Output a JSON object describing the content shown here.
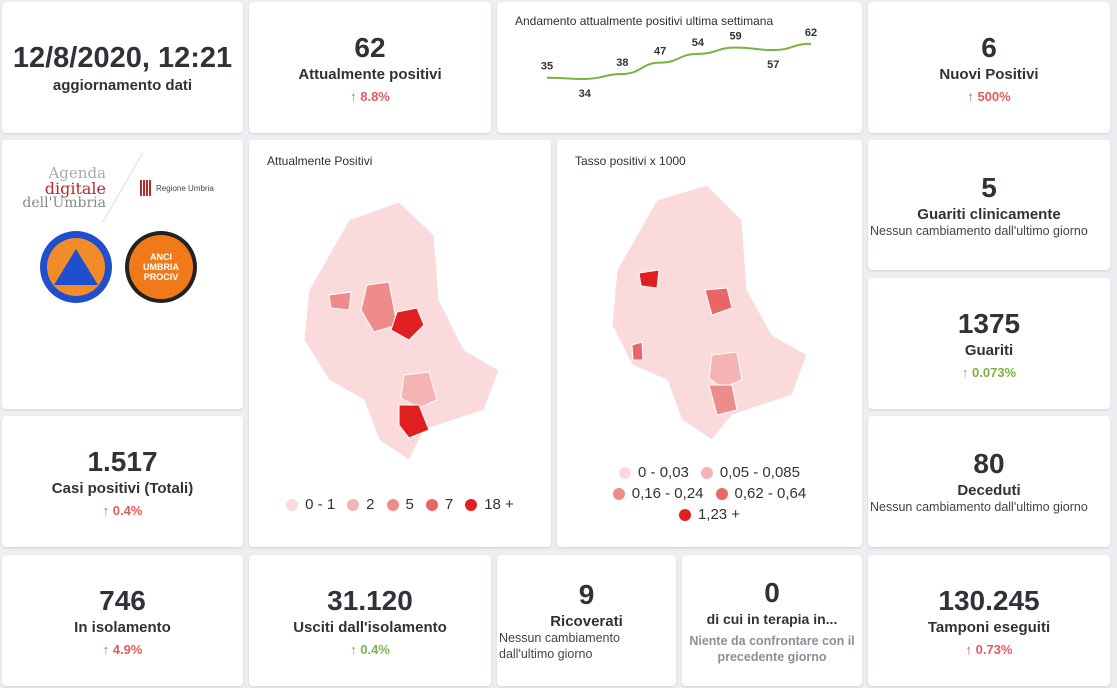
{
  "updated": {
    "value": "12/8/2020, 12:21",
    "label": "aggiornamento dati"
  },
  "attuali": {
    "value": "62",
    "label": "Attualmente positivi",
    "change": "8.8%"
  },
  "trend": {
    "title": "Andamento attualmente positivi ultima settimana"
  },
  "nuovi": {
    "value": "6",
    "label": "Nuovi Positivi",
    "change": "500%"
  },
  "logos": {
    "agenda": [
      "Agenda",
      "digitale",
      "dell'Umbria"
    ],
    "regione": "Regione Umbria",
    "pc": "Protezione Civile",
    "anci": "ANCI UMBRIA PROCIV"
  },
  "map1": {
    "title": "Attualmente Positivi",
    "legend": [
      "0 - 1",
      "2",
      "5",
      "7",
      "18 +"
    ],
    "colors": [
      "#fadada",
      "#f5b3b3",
      "#ee8c8c",
      "#e86666",
      "#e02020"
    ]
  },
  "map2": {
    "title": "Tasso positivi x 1000",
    "legend": [
      "0 - 0,03",
      "0,05 - 0,085",
      "0,16 - 0,24",
      "0,62 - 0,64",
      "1,23 +"
    ],
    "colors": [
      "#fadada",
      "#f5b3b3",
      "#ee8c8c",
      "#e86666",
      "#e02020"
    ]
  },
  "guariti_cl": {
    "value": "5",
    "label": "Guariti clinicamente",
    "note": "Nessun cambiamento dall'ultimo giorno"
  },
  "guariti": {
    "value": "1375",
    "label": "Guariti",
    "change": "0.073%"
  },
  "totali": {
    "value": "1.517",
    "label": "Casi positivi (Totali)",
    "change": "0.4%"
  },
  "deceduti": {
    "value": "80",
    "label": "Deceduti",
    "note": "Nessun cambiamento dall'ultimo giorno"
  },
  "isolamento": {
    "value": "746",
    "label": "In isolamento",
    "change": "4.9%"
  },
  "usciti": {
    "value": "31.120",
    "label": "Usciti dall'isolamento",
    "change": "0.4%"
  },
  "ricoverati": {
    "value": "9",
    "label": "Ricoverati",
    "note": "Nessun cambiamento dall'ultimo giorno"
  },
  "terapia": {
    "value": "0",
    "label": "di cui in terapia in...",
    "note": "Niente da confrontare con il precedente giorno"
  },
  "tamponi": {
    "value": "130.245",
    "label": "Tamponi eseguiti",
    "change": "0.73%"
  },
  "arrow": "↑",
  "chart_data": {
    "type": "line",
    "title": "Andamento attualmente positivi ultima settimana",
    "values": [
      35,
      34,
      38,
      47,
      54,
      59,
      57,
      62
    ],
    "color": "#7ab342"
  }
}
